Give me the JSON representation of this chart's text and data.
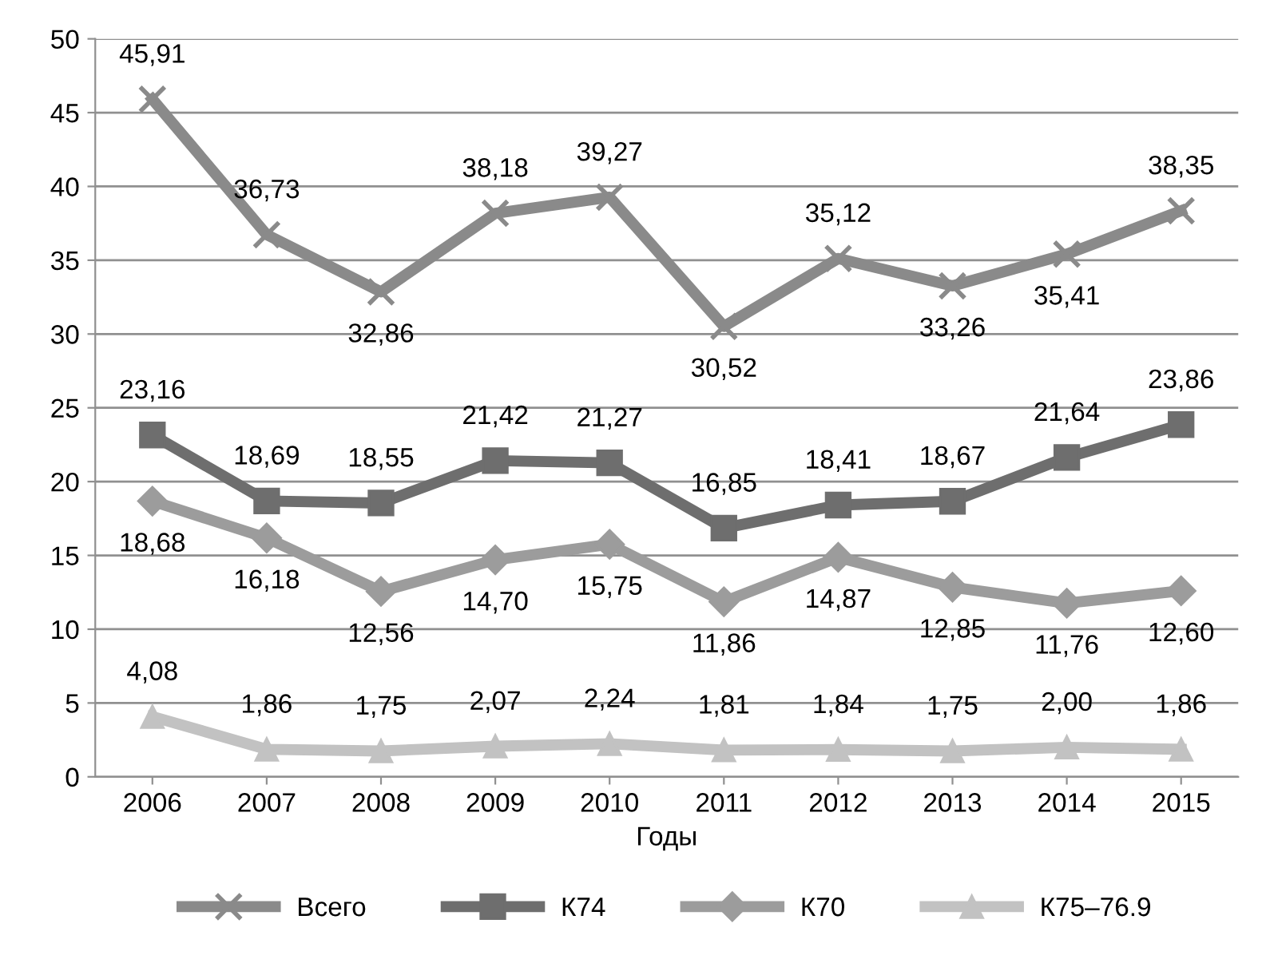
{
  "chart_data": {
    "type": "line",
    "xlabel": "Годы",
    "categories": [
      "2006",
      "2007",
      "2008",
      "2009",
      "2010",
      "2011",
      "2012",
      "2013",
      "2014",
      "2015"
    ],
    "ylim": [
      0,
      50
    ],
    "yticks": [
      0,
      5,
      10,
      15,
      20,
      25,
      30,
      35,
      40,
      45,
      50
    ],
    "grid": "y",
    "legend": "bottom",
    "data_labels": true,
    "series": [
      {
        "name": "Всего",
        "color": "#8a8a8a",
        "marker": "cross",
        "values": [
          45.91,
          36.73,
          32.86,
          38.18,
          39.27,
          30.52,
          35.12,
          33.26,
          35.41,
          38.35
        ],
        "value_labels": [
          "45,91",
          "36,73",
          "32,86",
          "38,18",
          "39,27",
          "30,52",
          "35,12",
          "33,26",
          "35,41",
          "38,35"
        ]
      },
      {
        "name": "К74",
        "color": "#6e6e6e",
        "marker": "square",
        "values": [
          23.16,
          18.69,
          18.55,
          21.42,
          21.27,
          16.85,
          18.41,
          18.67,
          21.64,
          23.86
        ],
        "value_labels": [
          "23,16",
          "18,69",
          "18,55",
          "21,42",
          "21,27",
          "16,85",
          "18,41",
          "18,67",
          "21,64",
          "23,86"
        ]
      },
      {
        "name": "К70",
        "color": "#9c9c9c",
        "marker": "diamond",
        "values": [
          18.68,
          16.18,
          12.56,
          14.7,
          15.75,
          11.86,
          14.87,
          12.85,
          11.76,
          12.6
        ],
        "value_labels": [
          "18,68",
          "16,18",
          "12,56",
          "14,70",
          "15,75",
          "11,86",
          "14,87",
          "12,85",
          "11,76",
          "12,60"
        ]
      },
      {
        "name": "К75–76.9",
        "color": "#c2c2c2",
        "marker": "triangle",
        "values": [
          4.08,
          1.86,
          1.75,
          2.07,
          2.24,
          1.81,
          1.84,
          1.75,
          2.0,
          1.86
        ],
        "value_labels": [
          "4,08",
          "1,86",
          "1,75",
          "2,07",
          "2,24",
          "1,81",
          "1,84",
          "1,75",
          "2,00",
          "1,86"
        ]
      }
    ]
  }
}
